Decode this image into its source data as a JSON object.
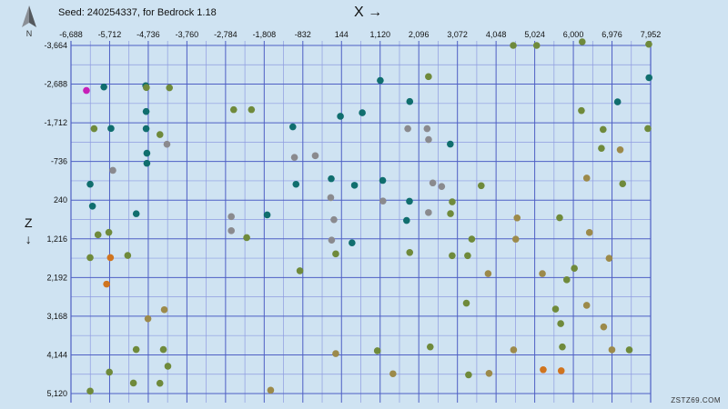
{
  "header": {
    "seed_text": "Seed: 240254337, for Bedrock 1.18",
    "x_label": "X",
    "z_label": "Z",
    "x_arrow": "→",
    "z_arrow": "↓",
    "compass_label": "N"
  },
  "watermark": "ZSTZ69.COM",
  "colors": {
    "background": "#cfe3f2",
    "major_grid": "#4e5fc4",
    "minor_grid": "#8e9be0",
    "teal": "#106e6e",
    "olive": "#6f8a3b",
    "tan": "#9c8a4a",
    "gray": "#8a8a8e",
    "orange": "#d0741e",
    "magenta": "#c71fb8"
  },
  "map": {
    "x_ticks": [
      "-6,688",
      "-5,712",
      "-4,736",
      "-3,760",
      "-2,784",
      "-1,808",
      "-832",
      "144",
      "1,120",
      "2,096",
      "3,072",
      "4,048",
      "5,024",
      "6,000",
      "6,976",
      "7,952"
    ],
    "z_ticks": [
      "-3,664",
      "-2,688",
      "-1,712",
      "-736",
      "240",
      "1,216",
      "2,192",
      "3,168",
      "4,144",
      "5,120"
    ],
    "x_range": [
      -6688,
      7952
    ],
    "z_range": [
      -3664,
      5120
    ],
    "structures": [
      {
        "x": -6298,
        "z": -2527,
        "type": "magenta"
      },
      {
        "x": -5857,
        "z": -2617,
        "type": "teal"
      },
      {
        "x": -4800,
        "z": -2648,
        "type": "teal"
      },
      {
        "x": -4784,
        "z": -2601,
        "type": "olive"
      },
      {
        "x": -4201,
        "z": -2597,
        "type": "olive"
      },
      {
        "x": -2579,
        "z": -2044,
        "type": "olive"
      },
      {
        "x": -2130,
        "z": -2044,
        "type": "olive"
      },
      {
        "x": -4790,
        "z": -1998,
        "type": "teal"
      },
      {
        "x": -6105,
        "z": -1565,
        "type": "olive"
      },
      {
        "x": -5678,
        "z": -1569,
        "type": "teal"
      },
      {
        "x": -4790,
        "z": -1565,
        "type": "teal"
      },
      {
        "x": -4441,
        "z": -1415,
        "type": "olive"
      },
      {
        "x": -4264,
        "z": -1171,
        "type": "gray"
      },
      {
        "x": -4771,
        "z": -944,
        "type": "teal"
      },
      {
        "x": -4771,
        "z": -691,
        "type": "teal"
      },
      {
        "x": -5631,
        "z": -512,
        "type": "gray"
      },
      {
        "x": -6204,
        "z": -162,
        "type": "teal"
      },
      {
        "x": -6145,
        "z": 390,
        "type": "teal"
      },
      {
        "x": -5040,
        "z": 582,
        "type": "teal"
      },
      {
        "x": -2639,
        "z": 655,
        "type": "gray"
      },
      {
        "x": -1733,
        "z": 612,
        "type": "teal"
      },
      {
        "x": -5732,
        "z": 1052,
        "type": "olive"
      },
      {
        "x": -6005,
        "z": 1114,
        "type": "olive"
      },
      {
        "x": -2639,
        "z": 1010,
        "type": "gray"
      },
      {
        "x": -2250,
        "z": 1186,
        "type": "olive"
      },
      {
        "x": -6205,
        "z": 1689,
        "type": "olive"
      },
      {
        "x": -5692,
        "z": 1689,
        "type": "orange"
      },
      {
        "x": -5255,
        "z": 1636,
        "type": "olive"
      },
      {
        "x": -5788,
        "z": 2359,
        "type": "orange"
      },
      {
        "x": -4331,
        "z": 3004,
        "type": "tan"
      },
      {
        "x": -4744,
        "z": 3232,
        "type": "tan"
      },
      {
        "x": -5041,
        "z": 4010,
        "type": "olive"
      },
      {
        "x": -4355,
        "z": 4010,
        "type": "olive"
      },
      {
        "x": -4241,
        "z": 4430,
        "type": "olive"
      },
      {
        "x": -5719,
        "z": 4580,
        "type": "olive"
      },
      {
        "x": -5111,
        "z": 4855,
        "type": "olive"
      },
      {
        "x": -4442,
        "z": 4861,
        "type": "olive"
      },
      {
        "x": -6204,
        "z": 5059,
        "type": "olive"
      },
      {
        "x": -1645,
        "z": 5036,
        "type": "tan"
      },
      {
        "x": -1085,
        "z": -1611,
        "type": "teal"
      },
      {
        "x": 117,
        "z": -1876,
        "type": "teal"
      },
      {
        "x": 669,
        "z": -1965,
        "type": "teal"
      },
      {
        "x": 1124,
        "z": -2781,
        "type": "teal"
      },
      {
        "x": 1868,
        "z": -2249,
        "type": "teal"
      },
      {
        "x": 2341,
        "z": -2876,
        "type": "olive"
      },
      {
        "x": 1818,
        "z": -1563,
        "type": "gray"
      },
      {
        "x": 2306,
        "z": -1563,
        "type": "gray"
      },
      {
        "x": 2343,
        "z": -1289,
        "type": "gray"
      },
      {
        "x": 2892,
        "z": -1175,
        "type": "teal"
      },
      {
        "x": -1044,
        "z": -840,
        "type": "gray"
      },
      {
        "x": -518,
        "z": -881,
        "type": "gray"
      },
      {
        "x": -1005,
        "z": -161,
        "type": "teal"
      },
      {
        "x": -115,
        "z": -301,
        "type": "teal"
      },
      {
        "x": 473,
        "z": -135,
        "type": "teal"
      },
      {
        "x": 1185,
        "z": -258,
        "type": "teal"
      },
      {
        "x": 2450,
        "z": -195,
        "type": "gray"
      },
      {
        "x": 2674,
        "z": -105,
        "type": "gray"
      },
      {
        "x": 3673,
        "z": -125,
        "type": "olive"
      },
      {
        "x": -128,
        "z": 176,
        "type": "gray"
      },
      {
        "x": 1191,
        "z": 263,
        "type": "gray"
      },
      {
        "x": 1861,
        "z": 267,
        "type": "teal"
      },
      {
        "x": 2941,
        "z": 282,
        "type": "olive"
      },
      {
        "x": -47,
        "z": 733,
        "type": "gray"
      },
      {
        "x": 1788,
        "z": 752,
        "type": "teal"
      },
      {
        "x": 2341,
        "z": 553,
        "type": "gray"
      },
      {
        "x": 2897,
        "z": 580,
        "type": "olive"
      },
      {
        "x": -105,
        "z": 1248,
        "type": "gray"
      },
      {
        "x": 410,
        "z": 1316,
        "type": "teal"
      },
      {
        "x": 3434,
        "z": 1223,
        "type": "olive"
      },
      {
        "x": -1,
        "z": 1596,
        "type": "olive"
      },
      {
        "x": 1867,
        "z": 1560,
        "type": "olive"
      },
      {
        "x": 2939,
        "z": 1640,
        "type": "olive"
      },
      {
        "x": 3330,
        "z": 1640,
        "type": "olive"
      },
      {
        "x": -906,
        "z": 2022,
        "type": "olive"
      },
      {
        "x": 3847,
        "z": 2093,
        "type": "tan"
      },
      {
        "x": 3298,
        "z": 2839,
        "type": "olive"
      },
      {
        "x": -1,
        "z": 4113,
        "type": "tan"
      },
      {
        "x": 1050,
        "z": 4041,
        "type": "olive"
      },
      {
        "x": 2385,
        "z": 3943,
        "type": "olive"
      },
      {
        "x": 1444,
        "z": 4621,
        "type": "tan"
      },
      {
        "x": 3353,
        "z": 4648,
        "type": "olive"
      },
      {
        "x": 3871,
        "z": 4611,
        "type": "tan"
      },
      {
        "x": 4482,
        "z": -3664,
        "type": "olive"
      },
      {
        "x": 5073,
        "z": -3664,
        "type": "olive"
      },
      {
        "x": 6224,
        "z": -3769,
        "type": "olive"
      },
      {
        "x": 7905,
        "z": -3695,
        "type": "olive"
      },
      {
        "x": 7911,
        "z": -2850,
        "type": "teal"
      },
      {
        "x": 7117,
        "z": -2240,
        "type": "teal"
      },
      {
        "x": 6204,
        "z": -2021,
        "type": "olive"
      },
      {
        "x": 6752,
        "z": -1543,
        "type": "olive"
      },
      {
        "x": 7882,
        "z": -1566,
        "type": "olive"
      },
      {
        "x": 6709,
        "z": -1069,
        "type": "olive"
      },
      {
        "x": 7183,
        "z": -1031,
        "type": "tan"
      },
      {
        "x": 6337,
        "z": -316,
        "type": "tan"
      },
      {
        "x": 7245,
        "z": -174,
        "type": "olive"
      },
      {
        "x": 4579,
        "z": 688,
        "type": "tan"
      },
      {
        "x": 5653,
        "z": 683,
        "type": "olive"
      },
      {
        "x": 6406,
        "z": 1057,
        "type": "tan"
      },
      {
        "x": 4545,
        "z": 1224,
        "type": "tan"
      },
      {
        "x": 6903,
        "z": 1708,
        "type": "tan"
      },
      {
        "x": 6025,
        "z": 1960,
        "type": "olive"
      },
      {
        "x": 5218,
        "z": 2094,
        "type": "tan"
      },
      {
        "x": 5833,
        "z": 2250,
        "type": "olive"
      },
      {
        "x": 5550,
        "z": 2988,
        "type": "olive"
      },
      {
        "x": 6336,
        "z": 2894,
        "type": "tan"
      },
      {
        "x": 5680,
        "z": 3356,
        "type": "olive"
      },
      {
        "x": 6766,
        "z": 3438,
        "type": "tan"
      },
      {
        "x": 4491,
        "z": 4017,
        "type": "tan"
      },
      {
        "x": 5722,
        "z": 3943,
        "type": "olive"
      },
      {
        "x": 6974,
        "z": 4016,
        "type": "tan"
      },
      {
        "x": 7412,
        "z": 4018,
        "type": "olive"
      },
      {
        "x": 5239,
        "z": 4518,
        "type": "orange"
      },
      {
        "x": 5694,
        "z": 4544,
        "type": "orange"
      }
    ]
  }
}
